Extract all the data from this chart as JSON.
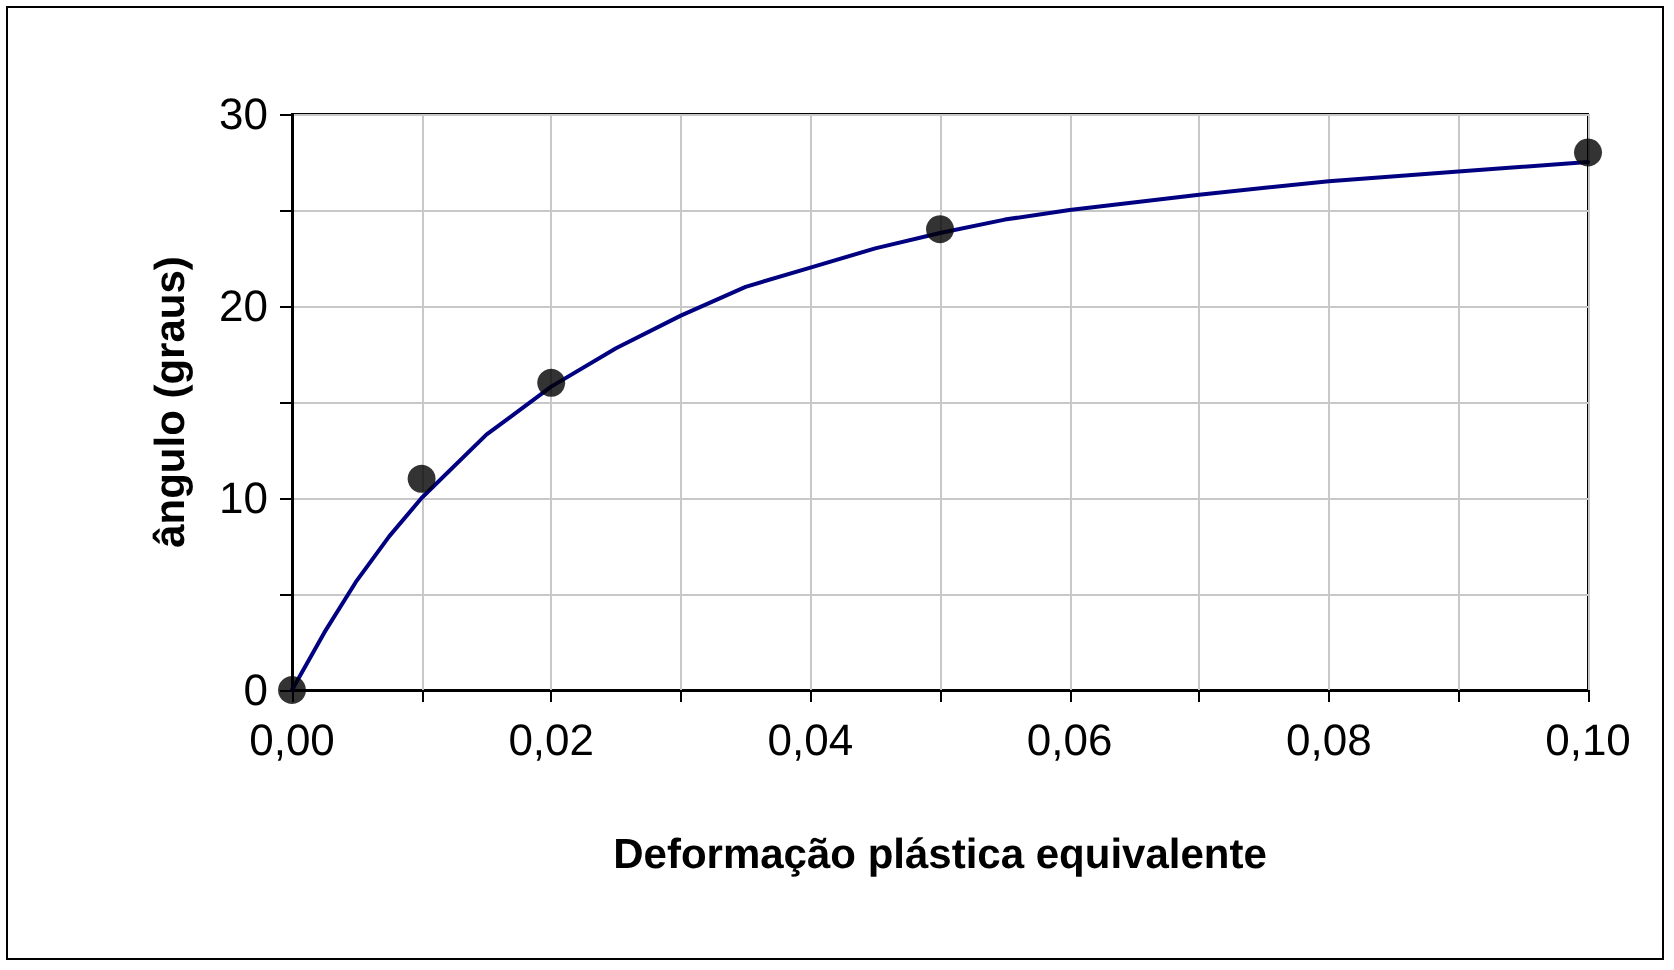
{
  "chart_data": {
    "type": "scatter",
    "xlabel": "Deformação plástica equivalente",
    "ylabel": "ângulo (graus)",
    "series": [
      {
        "color": "#000000",
        "x": [
          0,
          0.01,
          0.02,
          0.05,
          0.1
        ],
        "values": [
          0,
          11,
          16,
          24,
          28
        ],
        "marker": "circle"
      },
      {
        "type": "line",
        "color": "#000080",
        "x": [
          0,
          0.0025,
          0.005,
          0.0075,
          0.01,
          0.015,
          0.02,
          0.025,
          0.03,
          0.035,
          0.04,
          0.045,
          0.05,
          0.055,
          0.06,
          0.07,
          0.08,
          0.09,
          0.1
        ],
        "values": [
          0,
          3,
          5.7,
          8,
          10,
          13.3,
          15.8,
          17.8,
          19.5,
          21,
          22,
          23,
          23.8,
          24.5,
          25,
          25.8,
          26.5,
          27,
          27.5
        ],
        "marker": "none"
      }
    ],
    "xlim": [
      0,
      0.1
    ],
    "ylim": [
      0,
      30
    ],
    "xticks": [
      {
        "value": 0,
        "label": "0,00"
      },
      {
        "value": 0.01,
        "label": null
      },
      {
        "value": 0.02,
        "label": "0,02"
      },
      {
        "value": 0.03,
        "label": null
      },
      {
        "value": 0.04,
        "label": "0,04"
      },
      {
        "value": 0.05,
        "label": null
      },
      {
        "value": 0.06,
        "label": "0,06"
      },
      {
        "value": 0.07,
        "label": null
      },
      {
        "value": 0.08,
        "label": "0,08"
      },
      {
        "value": 0.09,
        "label": null
      },
      {
        "value": 0.1,
        "label": "0,10"
      }
    ],
    "yticks": [
      0,
      {
        "value": 5,
        "label": null
      },
      10,
      {
        "value": 15,
        "label": null
      },
      20,
      {
        "value": 25,
        "label": null
      },
      30
    ],
    "grid": true
  }
}
